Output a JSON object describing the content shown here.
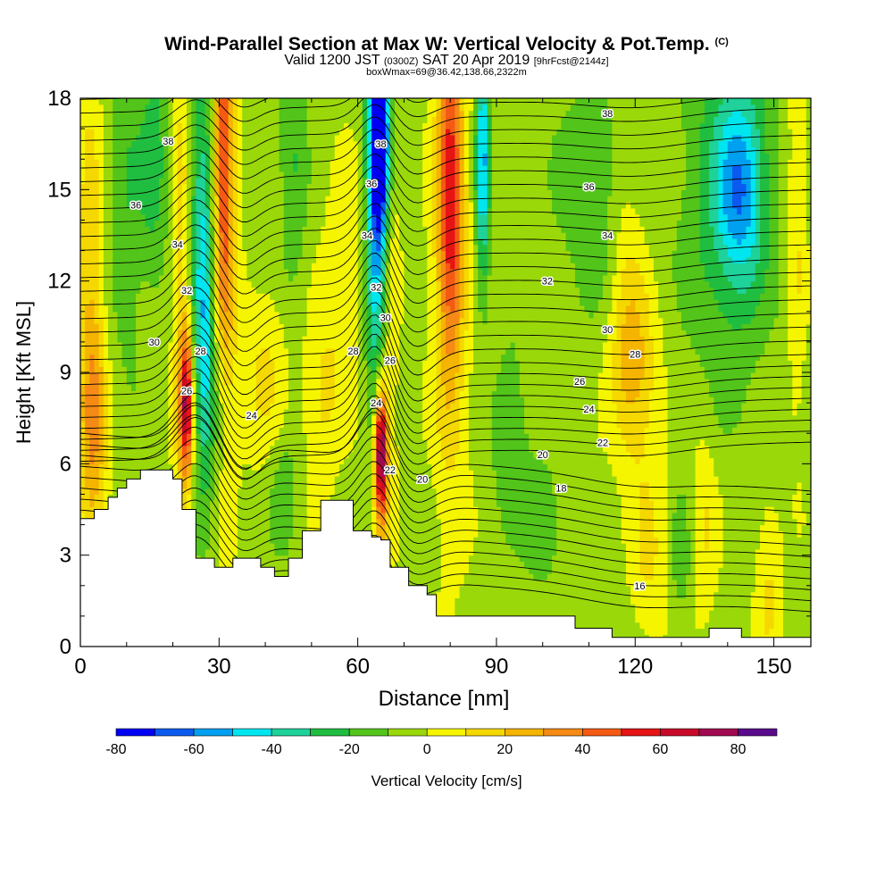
{
  "header": {
    "title": "Wind-Parallel Section at Max W: Vertical Velocity & Pot.Temp.",
    "title_mark": "(C)",
    "subtitle_valid": "Valid 1200 JST",
    "subtitle_utc": "(0300Z)",
    "subtitle_date": "SAT 20 Apr 2019",
    "subtitle_fcst": "[9hrFcst@2144z]",
    "subtitle_box": "boxWmax=69@36.42,138.66,2322m"
  },
  "chart_data": {
    "type": "heatmap",
    "xlabel": "Distance [nm]",
    "ylabel": "Height [Kft MSL]",
    "xlim": [
      0,
      158
    ],
    "ylim": [
      0,
      18
    ],
    "x_ticks": [
      0,
      30,
      60,
      90,
      120,
      150
    ],
    "y_ticks": [
      0,
      3,
      6,
      9,
      12,
      15,
      18
    ],
    "colorbar": {
      "label": "Vertical Velocity [cm/s]",
      "tick_values": [
        -80,
        -60,
        -40,
        -20,
        0,
        20,
        40,
        60,
        80
      ],
      "levels": [
        -80,
        -70,
        -60,
        -50,
        -40,
        -30,
        -20,
        -10,
        0,
        10,
        20,
        30,
        40,
        50,
        60,
        70,
        80,
        90
      ],
      "colors": [
        "#0000f5",
        "#0a5af0",
        "#00a0f0",
        "#00e6f0",
        "#1ed29a",
        "#20be40",
        "#52c41a",
        "#9ad80a",
        "#f5f500",
        "#f5d800",
        "#f5b400",
        "#f58a14",
        "#f55a14",
        "#e61414",
        "#c80a28",
        "#a00a50",
        "#5a0a8c"
      ]
    },
    "terrain_kft": [
      [
        0,
        4.2
      ],
      [
        3,
        4.2
      ],
      [
        3,
        4.5
      ],
      [
        6,
        4.5
      ],
      [
        6,
        4.9
      ],
      [
        8,
        4.9
      ],
      [
        8,
        5.2
      ],
      [
        10,
        5.2
      ],
      [
        10,
        5.5
      ],
      [
        13,
        5.5
      ],
      [
        13,
        5.8
      ],
      [
        20,
        5.8
      ],
      [
        20,
        5.5
      ],
      [
        22,
        5.5
      ],
      [
        22,
        4.5
      ],
      [
        25,
        4.5
      ],
      [
        25,
        2.9
      ],
      [
        29,
        2.9
      ],
      [
        29,
        2.6
      ],
      [
        33,
        2.6
      ],
      [
        33,
        2.9
      ],
      [
        39,
        2.9
      ],
      [
        39,
        2.6
      ],
      [
        42,
        2.6
      ],
      [
        42,
        2.3
      ],
      [
        45,
        2.3
      ],
      [
        45,
        2.9
      ],
      [
        48,
        2.9
      ],
      [
        48,
        3.8
      ],
      [
        52,
        3.8
      ],
      [
        52,
        4.8
      ],
      [
        59,
        4.8
      ],
      [
        59,
        3.8
      ],
      [
        63,
        3.8
      ],
      [
        63,
        3.6
      ],
      [
        65,
        3.6
      ],
      [
        65,
        3.5
      ],
      [
        67,
        3.5
      ],
      [
        67,
        2.6
      ],
      [
        71,
        2.6
      ],
      [
        71,
        2.0
      ],
      [
        75,
        2.0
      ],
      [
        75,
        1.7
      ],
      [
        77,
        1.7
      ],
      [
        77,
        1.0
      ],
      [
        107,
        1.0
      ],
      [
        107,
        0.6
      ],
      [
        115,
        0.6
      ],
      [
        115,
        0.3
      ],
      [
        119,
        0.3
      ],
      [
        119,
        0.3
      ],
      [
        136,
        0.3
      ],
      [
        136,
        0.6
      ],
      [
        143,
        0.6
      ],
      [
        143,
        0.3
      ],
      [
        158,
        0.3
      ]
    ],
    "wcells": [
      [
        2,
        12,
        3,
        8,
        20
      ],
      [
        3,
        7,
        3,
        4,
        25
      ],
      [
        22,
        12,
        2,
        13,
        20
      ],
      [
        23,
        8,
        2,
        3,
        25
      ],
      [
        23,
        8,
        1,
        2,
        45
      ],
      [
        31,
        14,
        3,
        9,
        20
      ],
      [
        31,
        16,
        2,
        6,
        35
      ],
      [
        40,
        9,
        6,
        3,
        15
      ],
      [
        58,
        12,
        5,
        4,
        15
      ],
      [
        52,
        8,
        4,
        3,
        15
      ],
      [
        65,
        6,
        2,
        3.5,
        35
      ],
      [
        65,
        6.5,
        1.2,
        1.9,
        68
      ],
      [
        67,
        13,
        2,
        8,
        15
      ],
      [
        80,
        13,
        4,
        9,
        25
      ],
      [
        80,
        15,
        2.5,
        5,
        40
      ],
      [
        120,
        9,
        5,
        3,
        25
      ],
      [
        118,
        13,
        4,
        5,
        15
      ],
      [
        123,
        3,
        4,
        3,
        15
      ],
      [
        135,
        4,
        3,
        3,
        15
      ],
      [
        149,
        2,
        3,
        3,
        15
      ],
      [
        155,
        14,
        2,
        7,
        15
      ],
      [
        10,
        15,
        4,
        6,
        -15
      ],
      [
        16,
        16,
        3,
        4,
        -20
      ],
      [
        26,
        14,
        3,
        8,
        -25
      ],
      [
        27,
        10,
        2,
        5,
        -30
      ],
      [
        46,
        16,
        3,
        6,
        -15
      ],
      [
        64,
        14,
        2.5,
        7,
        -55
      ],
      [
        65,
        17,
        2,
        3,
        -70
      ],
      [
        87,
        16,
        1.5,
        4,
        -50
      ],
      [
        112,
        15,
        9,
        4,
        -15
      ],
      [
        140,
        15,
        9,
        6,
        -25
      ],
      [
        143,
        15,
        5,
        3,
        -35
      ],
      [
        44,
        5,
        3,
        2,
        -15
      ],
      [
        30,
        8,
        2,
        3,
        -10
      ],
      [
        100,
        4,
        4,
        2,
        -15
      ],
      [
        130,
        3,
        2,
        2,
        -15
      ],
      [
        93,
        7,
        4,
        3,
        -15
      ]
    ],
    "theta_labels": [
      {
        "x": 19,
        "y": 16.6,
        "text": "38"
      },
      {
        "x": 65,
        "y": 16.5,
        "text": "38"
      },
      {
        "x": 114,
        "y": 17.5,
        "text": "38"
      },
      {
        "x": 12,
        "y": 14.5,
        "text": "36"
      },
      {
        "x": 63,
        "y": 15.2,
        "text": "36"
      },
      {
        "x": 110,
        "y": 15.1,
        "text": "36"
      },
      {
        "x": 21,
        "y": 13.2,
        "text": "34"
      },
      {
        "x": 62,
        "y": 13.5,
        "text": "34"
      },
      {
        "x": 114,
        "y": 13.5,
        "text": "34"
      },
      {
        "x": 23,
        "y": 11.7,
        "text": "32"
      },
      {
        "x": 64,
        "y": 11.8,
        "text": "32"
      },
      {
        "x": 101,
        "y": 12.0,
        "text": "32"
      },
      {
        "x": 16,
        "y": 10.0,
        "text": "30"
      },
      {
        "x": 66,
        "y": 10.8,
        "text": "30"
      },
      {
        "x": 114,
        "y": 10.4,
        "text": "30"
      },
      {
        "x": 26,
        "y": 9.7,
        "text": "28"
      },
      {
        "x": 59,
        "y": 9.7,
        "text": "28"
      },
      {
        "x": 120,
        "y": 9.6,
        "text": "28"
      },
      {
        "x": 67,
        "y": 9.4,
        "text": "26"
      },
      {
        "x": 108,
        "y": 8.7,
        "text": "26"
      },
      {
        "x": 23,
        "y": 8.4,
        "text": "26"
      },
      {
        "x": 37,
        "y": 7.6,
        "text": "24"
      },
      {
        "x": 64,
        "y": 8.0,
        "text": "24"
      },
      {
        "x": 110,
        "y": 7.8,
        "text": "24"
      },
      {
        "x": 113,
        "y": 6.7,
        "text": "22"
      },
      {
        "x": 67,
        "y": 5.8,
        "text": "22"
      },
      {
        "x": 100,
        "y": 6.3,
        "text": "20"
      },
      {
        "x": 74,
        "y": 5.5,
        "text": "20"
      },
      {
        "x": 104,
        "y": 5.2,
        "text": "18"
      },
      {
        "x": 121,
        "y": 2.0,
        "text": "16"
      }
    ],
    "colors": {
      "contour": "#000000",
      "terrain": "#ffffff"
    }
  }
}
